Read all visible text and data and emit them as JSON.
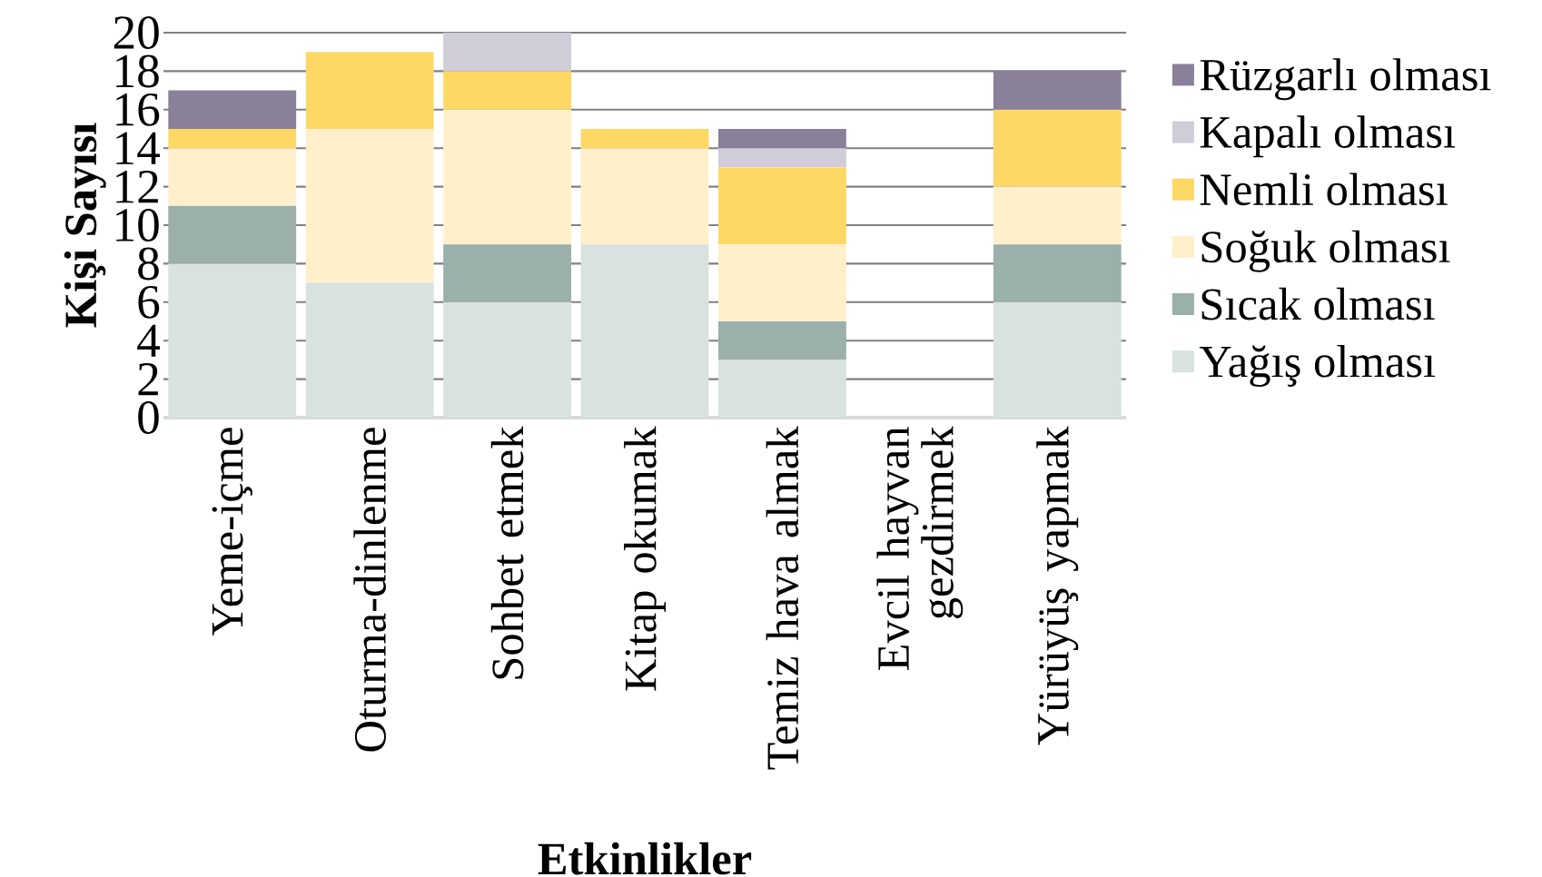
{
  "chart_data": {
    "type": "bar",
    "stacked": true,
    "xlabel": "Etkinlikler",
    "ylabel": "Kişi Sayısı",
    "categories": [
      "Yeme-içme",
      "Oturma-dinlenme",
      "Sohbet etmek",
      "Kitap okumak",
      "Temiz hava almak",
      "Evcil hayvan gezdirmek",
      "Yürüyüş yapmak"
    ],
    "series": [
      {
        "name": "Yağış olması",
        "color": "#d8e2e0",
        "values": [
          8,
          7,
          6,
          9,
          3,
          0,
          6
        ]
      },
      {
        "name": "Sıcak olması",
        "color": "#9bafab",
        "values": [
          3,
          0,
          3,
          0,
          2,
          0,
          3
        ]
      },
      {
        "name": "Soğuk olması",
        "color": "#fff0cb",
        "values": [
          3,
          8,
          7,
          5,
          4,
          0,
          3
        ]
      },
      {
        "name": "Nemli olması",
        "color": "#fed865",
        "values": [
          1,
          4,
          2,
          1,
          4,
          0,
          4
        ]
      },
      {
        "name": "Kapalı olması",
        "color": "#d0ccd8",
        "values": [
          0,
          0,
          2,
          0,
          1,
          0,
          0
        ]
      },
      {
        "name": "Rüzgarlı olması",
        "color": "#8a8099",
        "values": [
          2,
          0,
          0,
          0,
          1,
          0,
          2
        ]
      }
    ],
    "ylim": [
      0,
      20
    ],
    "yticks": [
      0,
      2,
      4,
      6,
      8,
      10,
      12,
      14,
      16,
      18,
      20
    ],
    "grid": "y",
    "legend": "right"
  }
}
